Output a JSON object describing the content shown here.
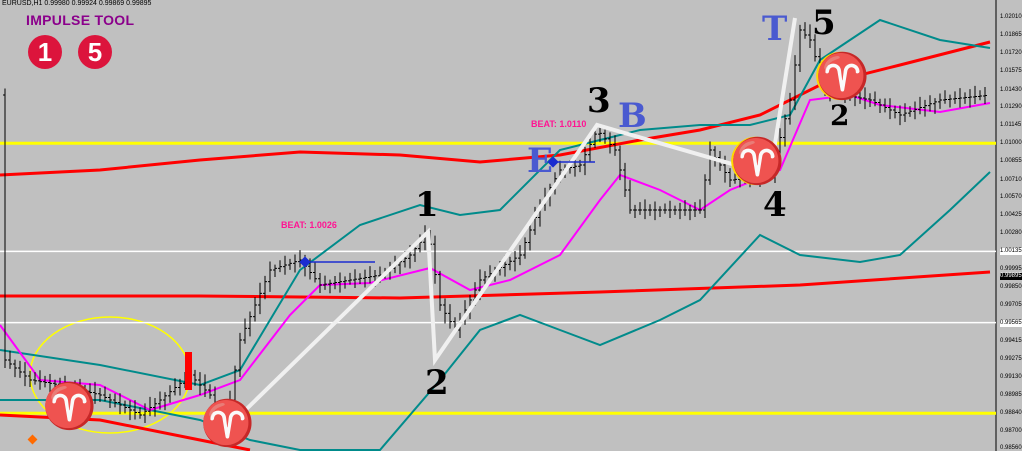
{
  "header": {
    "symbol_info": "EURUSD,H1  0.99980 0.99924 0.99869 0.99895"
  },
  "tool": {
    "title": "IMPULSE TOOL",
    "badge_left": "1",
    "badge_right": "5"
  },
  "colors": {
    "background": "#c0c0c0",
    "bands": "#008b8b",
    "middle": "#ff00ff",
    "long_ma": "#ff0000",
    "levels_yellow": "#ffff00",
    "levels_white": "#ffffff",
    "wave": "#f0f0f0",
    "beat": "#ff1493",
    "letters": "#4a5ad0"
  },
  "chart_data": {
    "type": "ohlc-line",
    "symbol": "EURUSD",
    "timeframe": "H1",
    "ylim": [
      0.985,
      1.0215
    ],
    "y_ticks": [
      "1.02010",
      "1.01865",
      "1.01720",
      "1.01575",
      "1.01430",
      "1.01290",
      "1.01145",
      "1.01000",
      "1.00855",
      "1.00710",
      "1.00570",
      "1.00425",
      "1.00280",
      "1.00135",
      "0.99995",
      "0.99850",
      "0.99705",
      "0.99565",
      "0.99415",
      "0.99275",
      "0.99130",
      "0.98985",
      "0.98840",
      "0.98700",
      "0.98560"
    ],
    "y_tick_values": [
      1.0201,
      1.01865,
      1.0172,
      1.01575,
      1.0143,
      1.0129,
      1.01145,
      1.01,
      1.00855,
      1.0071,
      1.0057,
      1.00425,
      1.0028,
      1.00135,
      0.99995,
      0.9985,
      0.99705,
      0.99565,
      0.99415,
      0.99275,
      0.9913,
      0.98985,
      0.9884,
      0.987,
      0.9856
    ],
    "boxed_ticks": [
      "1.00135",
      "0.99565"
    ],
    "current_price": "0.99895",
    "price_path": [
      [
        1,
        0.99266
      ],
      [
        6,
        0.99106
      ],
      [
        12,
        0.99066
      ],
      [
        20,
        0.98986
      ],
      [
        28,
        0.98826
      ],
      [
        32,
        0.98946
      ],
      [
        38,
        0.99146
      ],
      [
        42,
        0.98986
      ],
      [
        45,
        0.98706
      ],
      [
        48,
        0.99426
      ],
      [
        54,
        0.99986
      ],
      [
        60,
        1.00066
      ],
      [
        64,
        0.99866
      ],
      [
        70,
        0.99906
      ],
      [
        76,
        0.99946
      ],
      [
        82,
        1.00106
      ],
      [
        85.6,
        1.0029
      ],
      [
        88,
        0.99706
      ],
      [
        91,
        0.99506
      ],
      [
        96,
        0.99906
      ],
      [
        104,
        1.00106
      ],
      [
        108,
        1.00506
      ],
      [
        112,
        1.00786
      ],
      [
        116,
        1.00826
      ],
      [
        119.4,
        1.01106
      ],
      [
        123,
        1.00946
      ],
      [
        126,
        1.00466
      ],
      [
        132,
        1.00466
      ],
      [
        140,
        1.00466
      ],
      [
        142,
        1.00946
      ],
      [
        146,
        1.00706
      ],
      [
        154,
        1.00746
      ],
      [
        158,
        1.01346
      ],
      [
        160,
        1.01906
      ],
      [
        162,
        1.01826
      ],
      [
        165,
        1.01426
      ],
      [
        169,
        1.01386
      ],
      [
        174,
        1.01346
      ],
      [
        180,
        1.01226
      ],
      [
        188,
        1.01346
      ],
      [
        198,
        1.01386
      ]
    ],
    "lines": [
      {
        "role": "upper-ma",
        "color": "#ff0000",
        "points": [
          [
            0,
            1.00746
          ],
          [
            20,
            1.00786
          ],
          [
            40,
            1.00866
          ],
          [
            60,
            1.0093
          ],
          [
            80,
            1.00906
          ],
          [
            96,
            1.0085
          ],
          [
            112,
            1.00906
          ],
          [
            128,
            1.01026
          ],
          [
            140,
            1.01106
          ],
          [
            152,
            1.01226
          ],
          [
            164,
            1.01466
          ],
          [
            180,
            1.01626
          ],
          [
            198,
            1.0181
          ]
        ]
      },
      {
        "role": "lower-ma",
        "color": "#ff0000",
        "points": [
          [
            0,
            0.99778
          ],
          [
            40,
            0.99778
          ],
          [
            80,
            0.99762
          ],
          [
            120,
            0.9981
          ],
          [
            160,
            0.99866
          ],
          [
            198,
            0.9997
          ]
        ]
      },
      {
        "role": "bottom-ma",
        "color": "#ff0000",
        "points": [
          [
            0,
            0.98826
          ],
          [
            20,
            0.98786
          ],
          [
            40,
            0.98626
          ],
          [
            50,
            0.98546
          ]
        ]
      },
      {
        "role": "upper-band",
        "color": "#008b8b",
        "points": [
          [
            0,
            0.99346
          ],
          [
            20,
            0.99226
          ],
          [
            40,
            0.99066
          ],
          [
            48,
            0.99186
          ],
          [
            60,
            0.99986
          ],
          [
            72,
            1.00346
          ],
          [
            84,
            1.00506
          ],
          [
            92,
            1.00426
          ],
          [
            100,
            1.00466
          ],
          [
            112,
            1.00946
          ],
          [
            120,
            1.01026
          ],
          [
            128,
            1.01106
          ],
          [
            140,
            1.01146
          ],
          [
            150,
            1.01146
          ],
          [
            158,
            1.01226
          ],
          [
            164,
            1.01666
          ],
          [
            176,
            1.01986
          ],
          [
            188,
            1.01826
          ],
          [
            198,
            1.01762
          ]
        ]
      },
      {
        "role": "lower-band",
        "color": "#008b8b",
        "points": [
          [
            0,
            0.98946
          ],
          [
            20,
            0.98946
          ],
          [
            40,
            0.98786
          ],
          [
            50,
            0.98626
          ],
          [
            60,
            0.98546
          ],
          [
            76,
            0.98546
          ],
          [
            88,
            0.99106
          ],
          [
            96,
            0.99506
          ],
          [
            104,
            0.99626
          ],
          [
            112,
            0.99506
          ],
          [
            120,
            0.99386
          ],
          [
            132,
            0.99586
          ],
          [
            140,
            0.99746
          ],
          [
            152,
            1.00266
          ],
          [
            160,
            1.00106
          ],
          [
            172,
            1.0005
          ],
          [
            180,
            1.00106
          ],
          [
            190,
            1.00466
          ],
          [
            198,
            1.0077
          ]
        ]
      },
      {
        "role": "middle-band",
        "color": "#ff00ff",
        "points": [
          [
            0,
            0.99546
          ],
          [
            8,
            0.99106
          ],
          [
            20,
            0.99066
          ],
          [
            30,
            0.98866
          ],
          [
            40,
            0.98986
          ],
          [
            48,
            0.99106
          ],
          [
            58,
            0.99626
          ],
          [
            64,
            0.99866
          ],
          [
            74,
            0.99882
          ],
          [
            86,
            1.00002
          ],
          [
            94,
            0.99826
          ],
          [
            102,
            0.99906
          ],
          [
            112,
            1.00106
          ],
          [
            120,
            1.00546
          ],
          [
            124,
            1.00746
          ],
          [
            132,
            1.00626
          ],
          [
            140,
            1.00466
          ],
          [
            146,
            1.00626
          ],
          [
            156,
            1.00786
          ],
          [
            162,
            1.01346
          ],
          [
            170,
            1.01386
          ],
          [
            176,
            1.01306
          ],
          [
            188,
            1.0125
          ],
          [
            198,
            1.01322
          ]
        ]
      }
    ],
    "levels": [
      {
        "price": 1.01,
        "color": "#ffff00"
      },
      {
        "price": 0.9884,
        "color": "#ffff00"
      },
      {
        "price": 1.00135,
        "color": "#ffffff"
      },
      {
        "price": 0.99565,
        "color": "#ffffff"
      }
    ],
    "impulse_wave": [
      [
        45,
        0.98706
      ],
      [
        85.6,
        1.0029
      ],
      [
        87,
        0.99266
      ],
      [
        119.4,
        1.01146
      ],
      [
        154,
        1.00746
      ],
      [
        159,
        1.02002
      ]
    ],
    "wave_labels": [
      "1",
      "2",
      "3",
      "4",
      "5",
      "2"
    ],
    "letters": [
      "E",
      "B",
      "T"
    ],
    "beat_levels": [
      {
        "label": "BEAT: 1.0026",
        "from": [
          61,
          1.0005
        ],
        "to": [
          75,
          1.0005
        ]
      },
      {
        "label": "BEAT: 1.0110",
        "from": [
          110.6,
          1.0085
        ],
        "to": [
          119,
          1.0085
        ]
      }
    ]
  }
}
